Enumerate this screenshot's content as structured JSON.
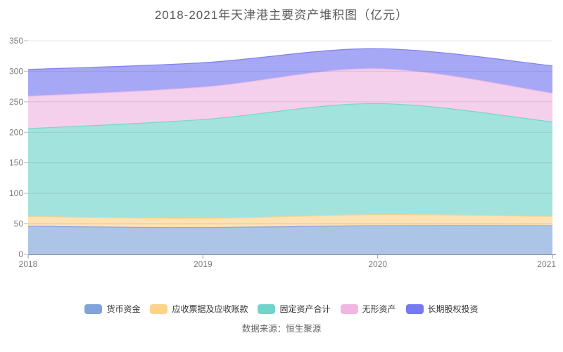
{
  "title": "2018-2021年天津港主要资产堆积图（亿元）",
  "source_note": "数据来源：恒生聚源",
  "chart_data": {
    "type": "area",
    "stacked": true,
    "smooth": true,
    "x": [
      "2018",
      "2019",
      "2020",
      "2021"
    ],
    "series": [
      {
        "name": "货币资金",
        "color": "#80a4d9",
        "values": [
          46,
          44,
          47,
          47
        ]
      },
      {
        "name": "应收票据及应收账款",
        "color": "#fbd38b",
        "values": [
          16,
          15,
          18,
          15
        ]
      },
      {
        "name": "固定资产合计",
        "color": "#71d4ca",
        "values": [
          144,
          162,
          182,
          155
        ]
      },
      {
        "name": "无形资产",
        "color": "#efb7e1",
        "values": [
          53,
          53,
          57,
          47
        ]
      },
      {
        "name": "长期股权投资",
        "color": "#7679ef",
        "values": [
          44,
          40,
          33,
          45
        ]
      }
    ],
    "ylim": [
      0,
      350
    ],
    "y_ticks": [
      0,
      50,
      100,
      150,
      200,
      250,
      300,
      350
    ],
    "grid": true,
    "legend_position": "bottom",
    "axis_color": "#8e94a6",
    "grid_color": "rgba(60,70,130,0.14)",
    "fill_opacity": 0.65
  }
}
